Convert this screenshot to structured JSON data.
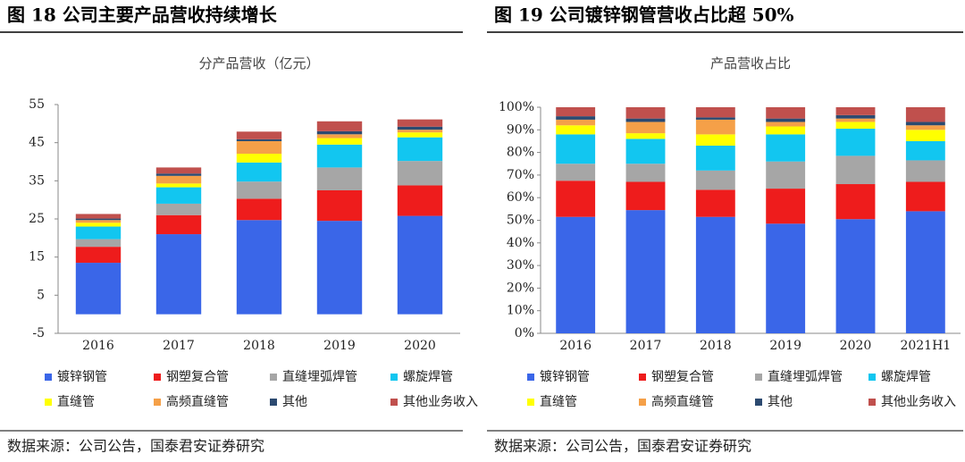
{
  "chart_data": [
    {
      "type": "bar",
      "stacked": true,
      "figure_title": "图 18  公司主要产品营收持续增长",
      "title": "分产品营收（亿元）",
      "categories": [
        "2016",
        "2017",
        "2018",
        "2019",
        "2020"
      ],
      "series": [
        {
          "name": "镀锌钢管",
          "color": "#3a66e8",
          "values": [
            13.5,
            21,
            24.7,
            24.5,
            25.8
          ]
        },
        {
          "name": "钢塑复合管",
          "color": "#ee1c1c",
          "values": [
            4.2,
            5,
            5.6,
            8,
            8
          ]
        },
        {
          "name": "直缝埋弧焊管",
          "color": "#a6a6a6",
          "values": [
            2,
            3,
            4.5,
            6,
            6.4
          ]
        },
        {
          "name": "螺旋焊管",
          "color": "#12c6f0",
          "values": [
            3.3,
            4.3,
            5,
            6,
            6.2
          ]
        },
        {
          "name": "直缝管",
          "color": "#ffff00",
          "values": [
            1,
            1,
            2.3,
            1.7,
            1.3
          ]
        },
        {
          "name": "高频直缝管",
          "color": "#f5a048",
          "values": [
            0.7,
            2,
            3.3,
            1,
            0.7
          ]
        },
        {
          "name": "其他",
          "color": "#2c4a70",
          "values": [
            0.4,
            0.6,
            0.5,
            0.8,
            0.8
          ]
        },
        {
          "name": "其他业务收入",
          "color": "#c0504d",
          "values": [
            1.2,
            1.6,
            2,
            2.6,
            1.9
          ]
        }
      ],
      "ylim": [
        -5,
        55
      ],
      "yticks": [
        -5,
        5,
        15,
        25,
        35,
        45,
        55
      ],
      "source": "数据来源：公司公告，国泰君安证券研究"
    },
    {
      "type": "bar",
      "stacked": true,
      "figure_title": "图 19  公司镀锌钢管营收占比超 50%",
      "title": "产品营收占比",
      "categories": [
        "2016",
        "2017",
        "2018",
        "2019",
        "2020",
        "2021H1"
      ],
      "series": [
        {
          "name": "镀锌钢管",
          "color": "#3a66e8",
          "values": [
            51.5,
            54.5,
            51.5,
            48.5,
            50.5,
            54
          ]
        },
        {
          "name": "钢塑复合管",
          "color": "#ee1c1c",
          "values": [
            16,
            12.5,
            12,
            15.5,
            15.5,
            13
          ]
        },
        {
          "name": "直缝埋弧焊管",
          "color": "#a6a6a6",
          "values": [
            7.5,
            8,
            8.5,
            12,
            12.5,
            9.5
          ]
        },
        {
          "name": "螺旋焊管",
          "color": "#12c6f0",
          "values": [
            13,
            11,
            11,
            12,
            12,
            8.5
          ]
        },
        {
          "name": "直缝管",
          "color": "#ffff00",
          "values": [
            4,
            2.5,
            5,
            3.5,
            3,
            5
          ]
        },
        {
          "name": "高频直缝管",
          "color": "#f5a048",
          "values": [
            2.5,
            5,
            6.5,
            2,
            1.5,
            2
          ]
        },
        {
          "name": "其他",
          "color": "#2c4a70",
          "values": [
            1.5,
            1.5,
            1,
            1.5,
            1.5,
            1.5
          ]
        },
        {
          "name": "其他业务收入",
          "color": "#c0504d",
          "values": [
            4,
            5,
            4.5,
            5,
            3.5,
            6.5
          ]
        }
      ],
      "ylim": [
        0,
        100
      ],
      "yticks": [
        {
          "value": 0,
          "label": "0%"
        },
        {
          "value": 10,
          "label": "10%"
        },
        {
          "value": 20,
          "label": "20%"
        },
        {
          "value": 30,
          "label": "30%"
        },
        {
          "value": 40,
          "label": "40%"
        },
        {
          "value": 50,
          "label": "50%"
        },
        {
          "value": 60,
          "label": "60%"
        },
        {
          "value": 70,
          "label": "70%"
        },
        {
          "value": 80,
          "label": "80%"
        },
        {
          "value": 90,
          "label": "90%"
        },
        {
          "value": 100,
          "label": "100%"
        }
      ],
      "source": "数据来源：公司公告，国泰君安证券研究"
    }
  ]
}
